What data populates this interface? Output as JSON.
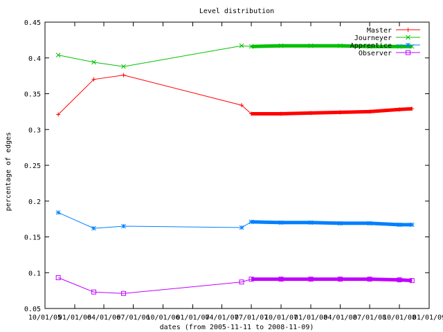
{
  "chart_data": {
    "type": "line",
    "title": "Level distribution",
    "xlabel": "dates (from 2005-11-11 to 2008-11-09)",
    "ylabel": "percentage of edges",
    "ylim": [
      0.05,
      0.45
    ],
    "yticks": [
      "0.05",
      "0.1",
      "0.15",
      "0.2",
      "0.25",
      "0.3",
      "0.35",
      "0.4",
      "0.45"
    ],
    "xlim": [
      "2005-10-01",
      "2009-01-01"
    ],
    "xticks": [
      "10/01/05",
      "01/01/06",
      "04/01/06",
      "07/01/06",
      "10/01/06",
      "01/01/07",
      "04/01/07",
      "07/01/07",
      "10/01/07",
      "01/01/08",
      "04/01/08",
      "07/01/08",
      "10/01/08",
      "01/01/09"
    ],
    "grid": false,
    "legend_position": "top-right",
    "series": [
      {
        "name": "Master",
        "color": "#ff0000",
        "marker": "plus",
        "dense_from": "2007-07-01",
        "x": [
          "2005-11-11",
          "2006-03-01",
          "2006-06-01",
          "2007-06-01",
          "2007-07-01",
          "2007-10-01",
          "2008-01-01",
          "2008-04-01",
          "2008-07-01",
          "2008-10-01",
          "2008-11-09"
        ],
        "y": [
          0.321,
          0.37,
          0.376,
          0.334,
          0.322,
          0.322,
          0.323,
          0.324,
          0.325,
          0.328,
          0.329
        ]
      },
      {
        "name": "Journeyer",
        "color": "#00c000",
        "marker": "cross",
        "dense_from": "2007-07-01",
        "x": [
          "2005-11-11",
          "2006-03-01",
          "2006-06-01",
          "2007-06-01",
          "2007-07-01",
          "2007-10-01",
          "2008-01-01",
          "2008-04-01",
          "2008-07-01",
          "2008-10-01",
          "2008-11-09"
        ],
        "y": [
          0.404,
          0.394,
          0.388,
          0.417,
          0.416,
          0.417,
          0.417,
          0.417,
          0.416,
          0.416,
          0.416
        ]
      },
      {
        "name": "Apprentice",
        "color": "#0080ff",
        "marker": "star",
        "dense_from": "2007-07-01",
        "x": [
          "2005-11-11",
          "2006-03-01",
          "2006-06-01",
          "2007-06-01",
          "2007-07-01",
          "2007-10-01",
          "2008-01-01",
          "2008-04-01",
          "2008-07-01",
          "2008-10-01",
          "2008-11-09"
        ],
        "y": [
          0.184,
          0.162,
          0.165,
          0.163,
          0.171,
          0.17,
          0.17,
          0.169,
          0.169,
          0.167,
          0.167
        ]
      },
      {
        "name": "Observer",
        "color": "#c000ff",
        "marker": "square",
        "dense_from": "2007-07-01",
        "x": [
          "2005-11-11",
          "2006-03-01",
          "2006-06-01",
          "2007-06-01",
          "2007-07-01",
          "2007-10-01",
          "2008-01-01",
          "2008-04-01",
          "2008-07-01",
          "2008-10-01",
          "2008-11-09"
        ],
        "y": [
          0.093,
          0.073,
          0.071,
          0.087,
          0.091,
          0.091,
          0.091,
          0.091,
          0.091,
          0.09,
          0.089
        ]
      }
    ]
  }
}
